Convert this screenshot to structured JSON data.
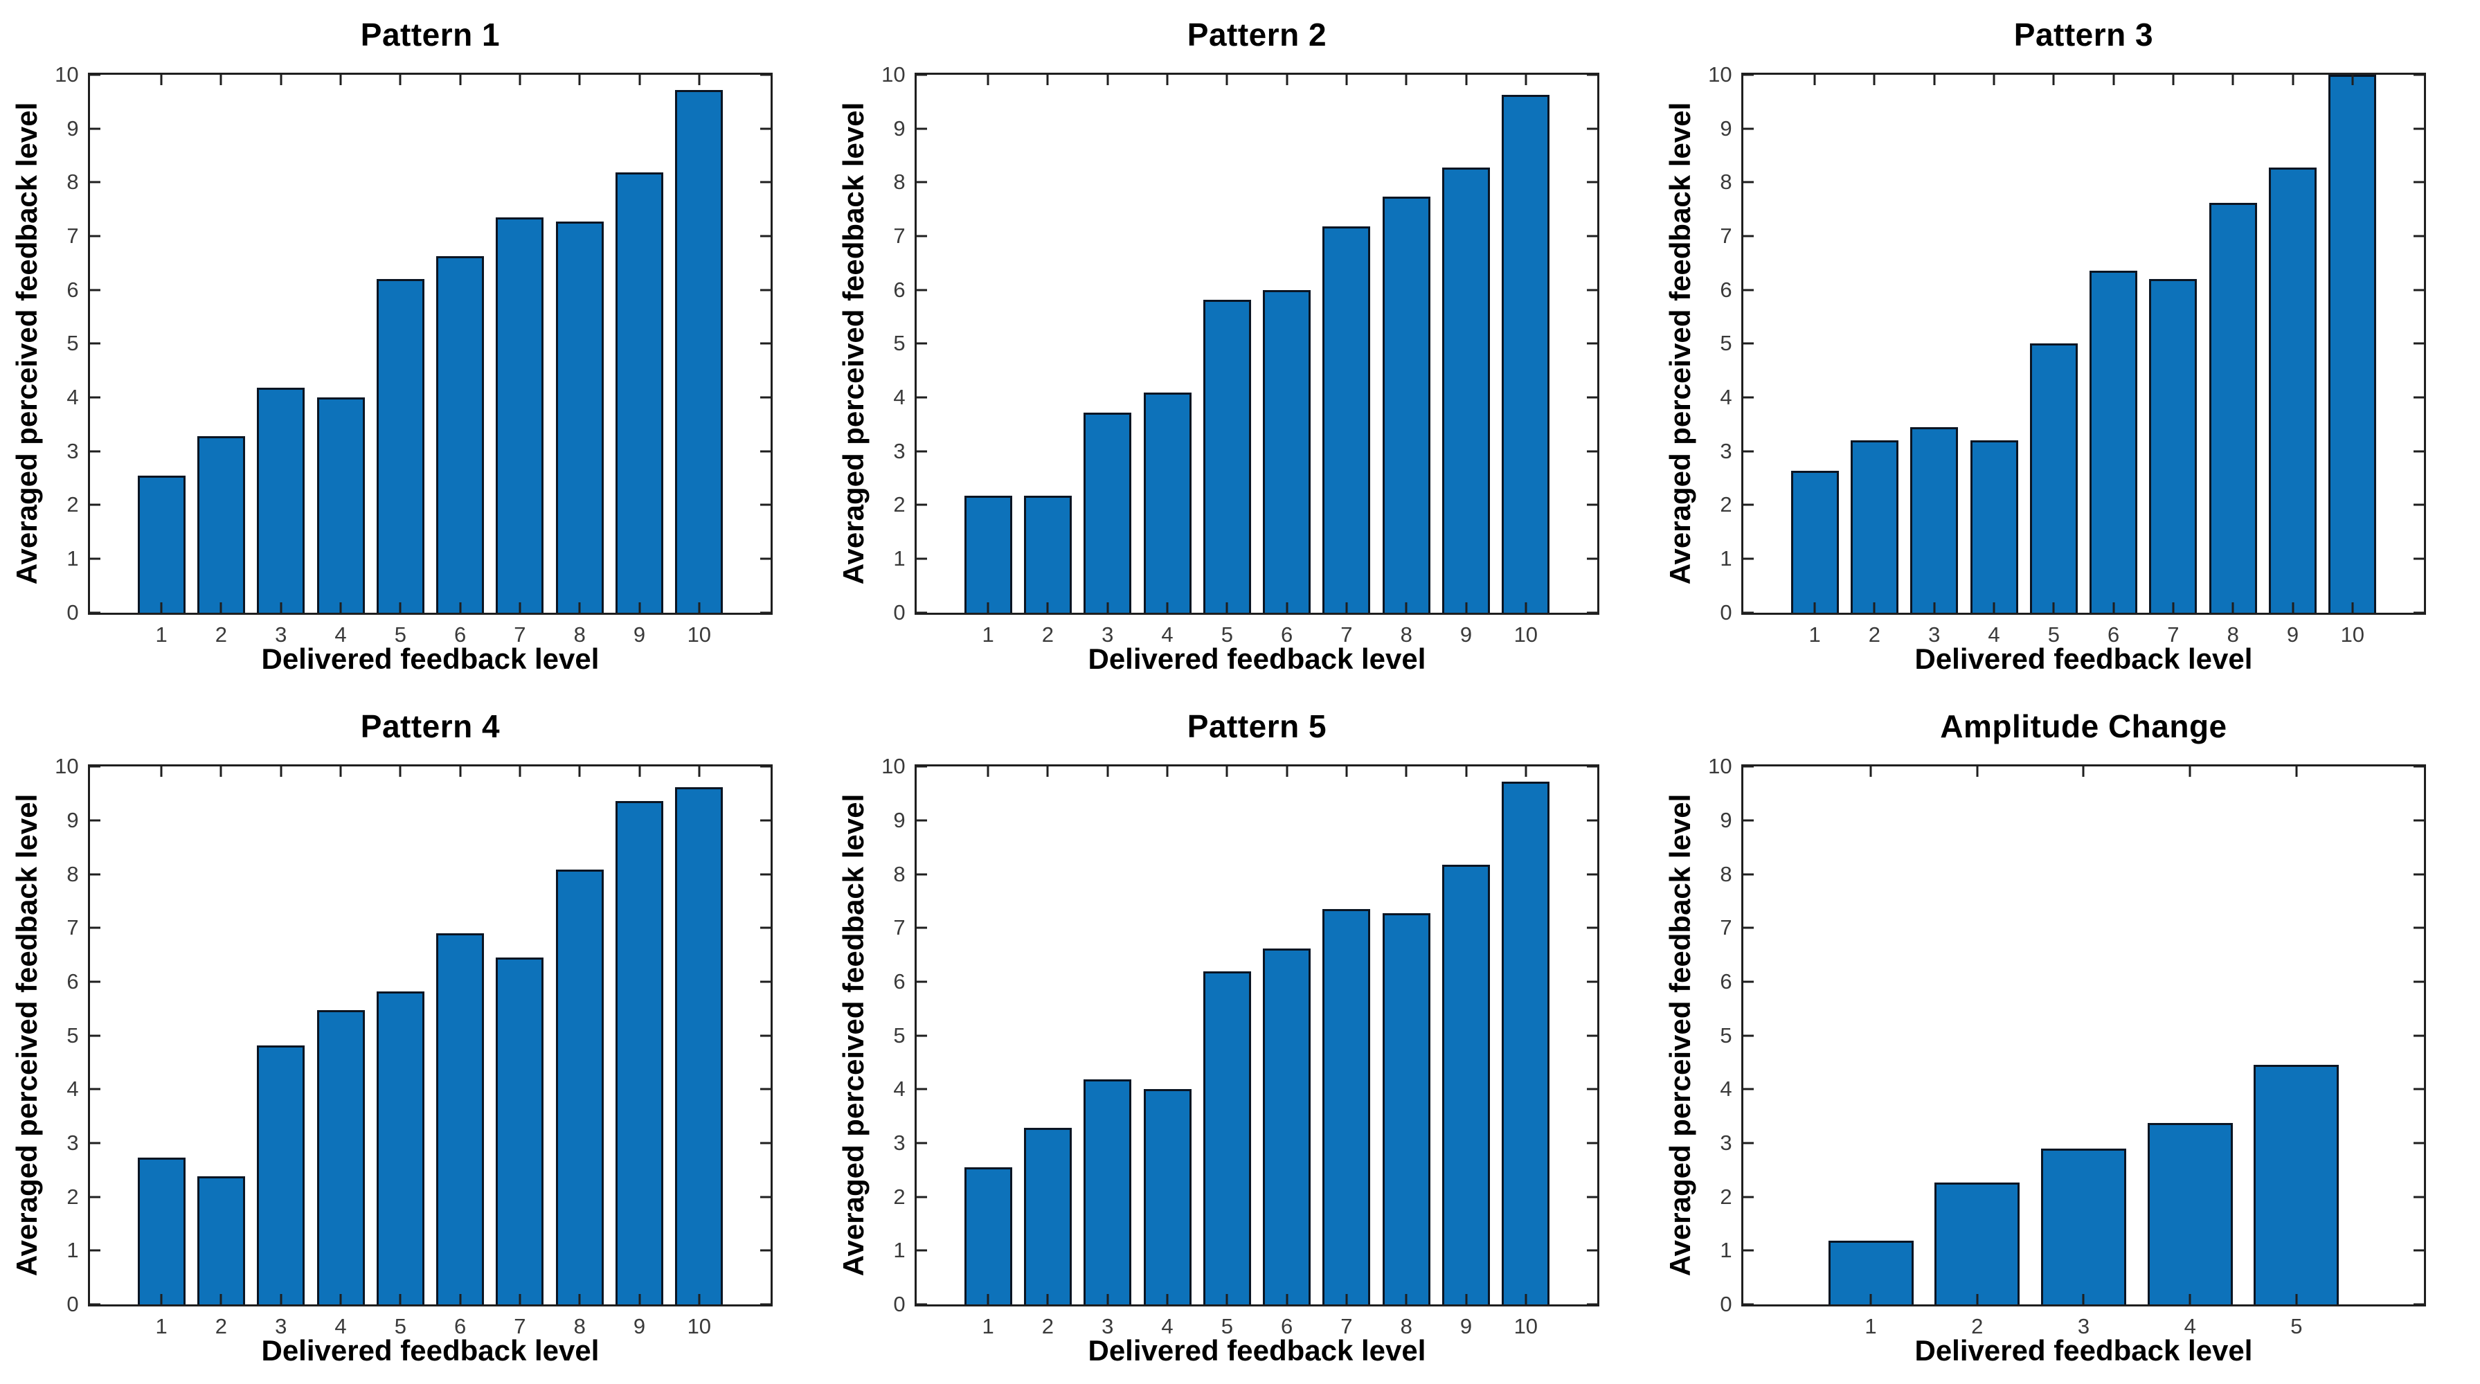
{
  "figure": {
    "background": "#ffffff",
    "layout": "2x3-subplot-grid"
  },
  "style": {
    "bar_color": "#0D72BA",
    "bar_edge_color": "#0B1523",
    "axis_color": "#1F1F1F",
    "tick_label_color": "#3A3A3A",
    "text_color": "#000000"
  },
  "chart_data": [
    {
      "type": "bar",
      "title": "Pattern 1",
      "xlabel": "Delivered feedback level",
      "ylabel": "Averaged perceived feedback level",
      "categories": [
        "1",
        "2",
        "3",
        "4",
        "5",
        "6",
        "7",
        "8",
        "9",
        "10"
      ],
      "values": [
        2.55,
        3.28,
        4.18,
        4.0,
        6.2,
        6.62,
        7.35,
        7.27,
        8.18,
        9.72
      ],
      "ylim": [
        0,
        10
      ],
      "yticks": [
        0,
        1,
        2,
        3,
        4,
        5,
        6,
        7,
        8,
        9,
        10
      ],
      "grid": false,
      "bar_width": 0.8,
      "legend": null
    },
    {
      "type": "bar",
      "title": "Pattern 2",
      "xlabel": "Delivered feedback level",
      "ylabel": "Averaged perceived feedback level",
      "categories": [
        "1",
        "2",
        "3",
        "4",
        "5",
        "6",
        "7",
        "8",
        "9",
        "10"
      ],
      "values": [
        2.17,
        2.17,
        3.71,
        4.09,
        5.82,
        6.0,
        7.18,
        7.73,
        8.27,
        9.62
      ],
      "ylim": [
        0,
        10
      ],
      "yticks": [
        0,
        1,
        2,
        3,
        4,
        5,
        6,
        7,
        8,
        9,
        10
      ],
      "grid": false,
      "bar_width": 0.8,
      "legend": null
    },
    {
      "type": "bar",
      "title": "Pattern 3",
      "xlabel": "Delivered feedback level",
      "ylabel": "Averaged perceived feedback level",
      "categories": [
        "1",
        "2",
        "3",
        "4",
        "5",
        "6",
        "7",
        "8",
        "9",
        "10"
      ],
      "values": [
        2.64,
        3.2,
        3.45,
        3.2,
        5.0,
        6.36,
        6.2,
        7.62,
        8.27,
        10.0
      ],
      "ylim": [
        0,
        10
      ],
      "yticks": [
        0,
        1,
        2,
        3,
        4,
        5,
        6,
        7,
        8,
        9,
        10
      ],
      "grid": false,
      "bar_width": 0.8,
      "legend": null
    },
    {
      "type": "bar",
      "title": "Pattern 4",
      "xlabel": "Delivered feedback level",
      "ylabel": "Averaged perceived feedback level",
      "categories": [
        "1",
        "2",
        "3",
        "4",
        "5",
        "6",
        "7",
        "8",
        "9",
        "10"
      ],
      "values": [
        2.73,
        2.38,
        4.82,
        5.47,
        5.82,
        6.9,
        6.45,
        8.09,
        9.36,
        9.62
      ],
      "ylim": [
        0,
        10
      ],
      "yticks": [
        0,
        1,
        2,
        3,
        4,
        5,
        6,
        7,
        8,
        9,
        10
      ],
      "grid": false,
      "bar_width": 0.8,
      "legend": null
    },
    {
      "type": "bar",
      "title": "Pattern 5",
      "xlabel": "Delivered feedback level",
      "ylabel": "Averaged perceived feedback level",
      "categories": [
        "1",
        "2",
        "3",
        "4",
        "5",
        "6",
        "7",
        "8",
        "9",
        "10"
      ],
      "values": [
        2.55,
        3.28,
        4.18,
        4.0,
        6.2,
        6.62,
        7.35,
        7.27,
        8.18,
        9.72
      ],
      "ylim": [
        0,
        10
      ],
      "yticks": [
        0,
        1,
        2,
        3,
        4,
        5,
        6,
        7,
        8,
        9,
        10
      ],
      "grid": false,
      "bar_width": 0.8,
      "legend": null
    },
    {
      "type": "bar",
      "title": "Amplitude Change",
      "xlabel": "Delivered feedback level",
      "ylabel": "Averaged perceived feedback level",
      "categories": [
        "1",
        "2",
        "3",
        "4",
        "5"
      ],
      "values": [
        1.18,
        2.27,
        2.9,
        3.37,
        4.45
      ],
      "ylim": [
        0,
        10
      ],
      "yticks": [
        0,
        1,
        2,
        3,
        4,
        5,
        6,
        7,
        8,
        9,
        10
      ],
      "grid": false,
      "bar_width": 0.8,
      "legend": null
    }
  ]
}
